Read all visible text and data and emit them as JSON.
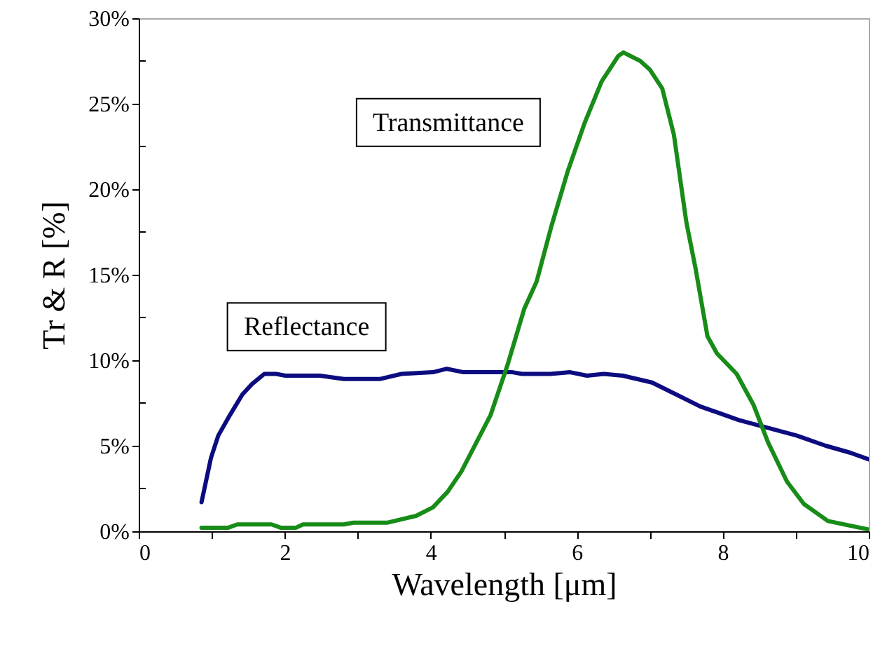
{
  "chart_data": {
    "type": "line",
    "xlabel": "Wavelength [μm]",
    "ylabel": "Tr & R  [%]",
    "xlim": [
      0,
      10
    ],
    "xticks": [
      0,
      {
        "value": 1,
        "label": null
      },
      2,
      {
        "value": 3,
        "label": null
      },
      4,
      {
        "value": 5,
        "label": null
      },
      6,
      {
        "value": 7,
        "label": null
      },
      8,
      {
        "value": 9,
        "label": null
      },
      10
    ],
    "ylim": [
      0,
      30
    ],
    "yticks": [
      {
        "value": 0,
        "label": "0%"
      },
      {
        "value": 2.5,
        "label": null
      },
      {
        "value": 5,
        "label": "5%"
      },
      {
        "value": 7.5,
        "label": null
      },
      {
        "value": 10,
        "label": "10%"
      },
      {
        "value": 12.5,
        "label": null
      },
      {
        "value": 15,
        "label": "15%"
      },
      {
        "value": 17.5,
        "label": null
      },
      {
        "value": 20,
        "label": "20%"
      },
      {
        "value": 22.5,
        "label": null
      },
      {
        "value": 25,
        "label": "25%"
      },
      {
        "value": 27.5,
        "label": null
      },
      {
        "value": 30,
        "label": "30%"
      }
    ],
    "marker": "none",
    "line_style": "solid",
    "series": [
      {
        "name": "Reflectance",
        "color": "#0c0c80",
        "x": [
          0.86,
          0.99,
          1.09,
          1.25,
          1.42,
          1.55,
          1.72,
          1.88,
          2.01,
          2.48,
          2.81,
          3.3,
          3.6,
          4.03,
          4.22,
          4.45,
          5.12,
          5.25,
          5.64,
          5.91,
          6.14,
          6.37,
          6.63,
          7.03,
          7.36,
          7.69,
          7.89,
          8.22,
          8.48,
          9.01,
          9.41,
          9.74,
          10.0
        ],
        "values": [
          1.7,
          4.3,
          5.6,
          6.8,
          8.0,
          8.6,
          9.2,
          9.2,
          9.1,
          9.1,
          8.9,
          8.9,
          9.2,
          9.3,
          9.5,
          9.3,
          9.3,
          9.2,
          9.2,
          9.3,
          9.1,
          9.2,
          9.1,
          8.7,
          8.0,
          7.3,
          7.0,
          6.5,
          6.2,
          5.6,
          5.0,
          4.6,
          4.2
        ]
      },
      {
        "name": "Transmittance",
        "color": "#188c18",
        "x": [
          0.86,
          1.22,
          1.35,
          1.82,
          1.95,
          2.15,
          2.25,
          2.81,
          2.94,
          3.4,
          3.8,
          4.03,
          4.23,
          4.42,
          4.82,
          5.05,
          5.28,
          5.45,
          5.65,
          5.88,
          6.11,
          6.34,
          6.57,
          6.64,
          6.87,
          7.0,
          7.17,
          7.33,
          7.5,
          7.63,
          7.79,
          7.92,
          8.19,
          8.42,
          8.62,
          8.88,
          9.11,
          9.44,
          10.0
        ],
        "values": [
          0.2,
          0.2,
          0.4,
          0.4,
          0.2,
          0.2,
          0.4,
          0.4,
          0.5,
          0.5,
          0.9,
          1.4,
          2.3,
          3.5,
          6.8,
          9.7,
          13.0,
          14.6,
          17.8,
          21.1,
          23.9,
          26.3,
          27.8,
          28.0,
          27.5,
          27.0,
          25.9,
          23.2,
          18.1,
          15.3,
          11.4,
          10.4,
          9.2,
          7.4,
          5.2,
          2.9,
          1.6,
          0.6,
          0.1
        ]
      }
    ]
  }
}
